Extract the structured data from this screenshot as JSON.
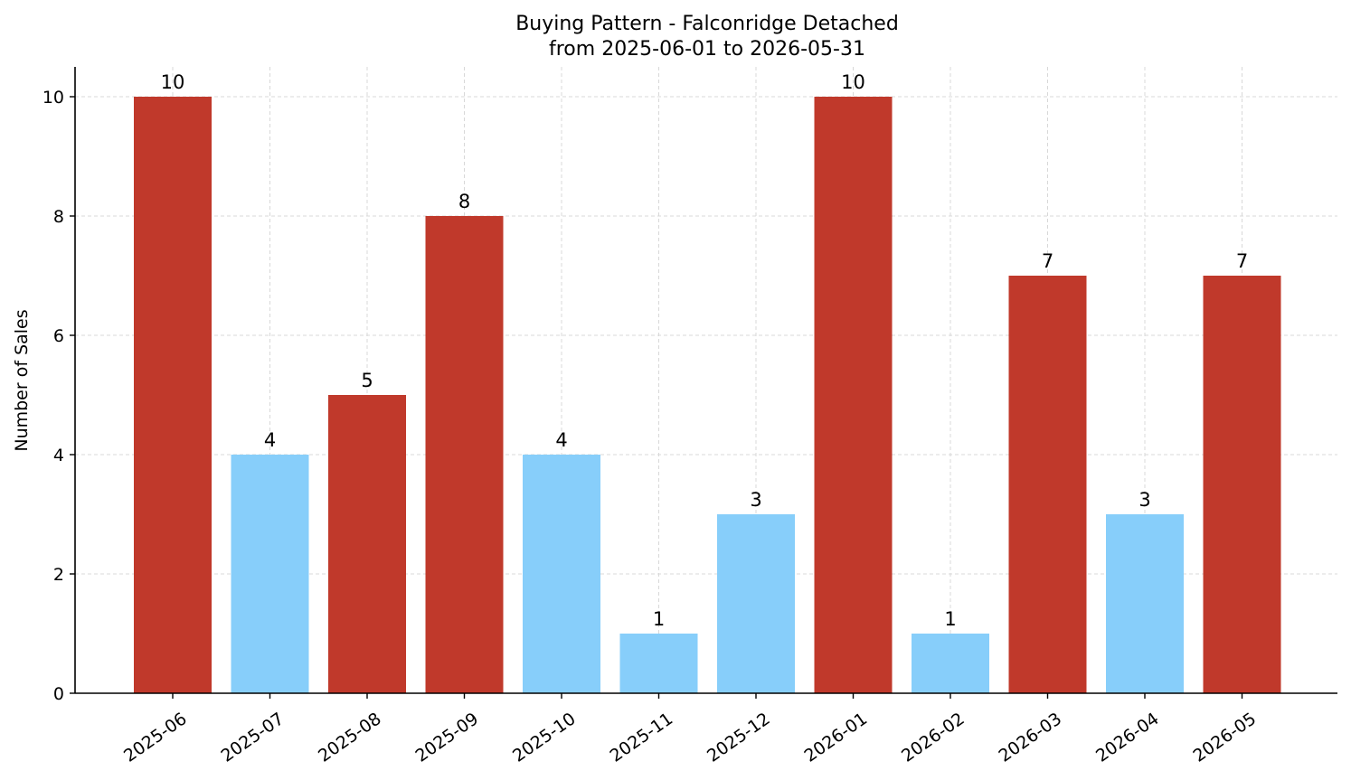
{
  "chart_data": {
    "type": "bar",
    "title_line1": "Buying Pattern - Falconridge Detached",
    "title_line2": "from 2025-06-01 to 2026-05-31",
    "ylabel": "Number of Sales",
    "xlabel": "",
    "categories": [
      "2025-06",
      "2025-07",
      "2025-08",
      "2025-09",
      "2025-10",
      "2025-11",
      "2025-12",
      "2026-01",
      "2026-02",
      "2026-03",
      "2026-04",
      "2026-05"
    ],
    "values": [
      10,
      4,
      5,
      8,
      4,
      1,
      3,
      10,
      1,
      7,
      3,
      7
    ],
    "bar_colors": [
      "#c0392b",
      "#87cefa",
      "#c0392b",
      "#c0392b",
      "#87cefa",
      "#87cefa",
      "#87cefa",
      "#c0392b",
      "#87cefa",
      "#c0392b",
      "#87cefa",
      "#c0392b"
    ],
    "ylim": [
      0,
      10.5
    ],
    "yticks": [
      0,
      2,
      4,
      6,
      8,
      10
    ],
    "grid": true
  }
}
